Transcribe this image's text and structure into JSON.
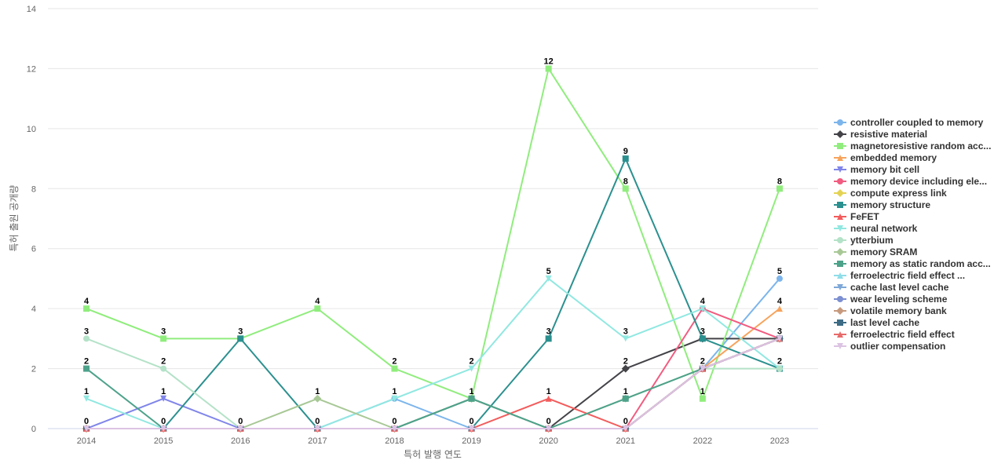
{
  "chart_data": {
    "type": "line",
    "title": "",
    "xlabel": "특허 발행 연도",
    "ylabel": "특허 출원 공개량",
    "ylim": [
      0,
      14
    ],
    "yticks": [
      0,
      2,
      4,
      6,
      8,
      10,
      12,
      14
    ],
    "grid": true,
    "legend_position": "right",
    "categories": [
      "2014",
      "2015",
      "2016",
      "2017",
      "2018",
      "2019",
      "2020",
      "2021",
      "2022",
      "2023"
    ],
    "series": [
      {
        "name": "controller coupled to memory",
        "color": "#7cb5ec",
        "marker": "circle",
        "values": [
          0,
          0,
          0,
          0,
          1,
          0,
          0,
          0,
          2,
          5
        ]
      },
      {
        "name": "resistive material",
        "color": "#434348",
        "marker": "diamond",
        "values": [
          0,
          0,
          0,
          0,
          0,
          1,
          0,
          2,
          3,
          3
        ]
      },
      {
        "name": "magnetoresistive random acc...",
        "color": "#90ed7d",
        "marker": "square",
        "values": [
          4,
          3,
          3,
          4,
          2,
          1,
          12,
          8,
          1,
          8
        ]
      },
      {
        "name": "embedded memory",
        "color": "#f7a35c",
        "marker": "triangle",
        "values": [
          0,
          0,
          0,
          0,
          0,
          0,
          0,
          0,
          2,
          4
        ]
      },
      {
        "name": "memory bit cell",
        "color": "#8085e9",
        "marker": "triangle-down",
        "values": [
          0,
          1,
          0,
          0,
          0,
          0,
          0,
          0,
          2,
          3
        ]
      },
      {
        "name": "memory device including ele...",
        "color": "#f15c80",
        "marker": "circle",
        "values": [
          0,
          0,
          0,
          0,
          0,
          0,
          0,
          0,
          4,
          3
        ]
      },
      {
        "name": "compute express link",
        "color": "#e4d354",
        "marker": "diamond",
        "values": [
          0,
          0,
          0,
          0,
          0,
          0,
          0,
          0,
          2,
          3
        ]
      },
      {
        "name": "memory structure",
        "color": "#2b908f",
        "marker": "square",
        "values": [
          0,
          0,
          3,
          0,
          0,
          0,
          3,
          9,
          3,
          2
        ]
      },
      {
        "name": "FeFET",
        "color": "#f45b5b",
        "marker": "triangle",
        "values": [
          0,
          0,
          0,
          0,
          0,
          0,
          1,
          0,
          2,
          3
        ]
      },
      {
        "name": "neural network",
        "color": "#91e8e1",
        "marker": "triangle-down",
        "values": [
          1,
          0,
          0,
          0,
          1,
          2,
          5,
          3,
          4,
          2
        ]
      },
      {
        "name": "ytterbium",
        "color": "#b4e2c8",
        "marker": "circle",
        "values": [
          3,
          2,
          0,
          0,
          0,
          0,
          0,
          0,
          2,
          2
        ]
      },
      {
        "name": "memory SRAM",
        "color": "#a8c896",
        "marker": "diamond",
        "values": [
          0,
          0,
          0,
          1,
          0,
          1,
          0,
          1,
          2,
          3
        ]
      },
      {
        "name": "memory as static random acc...",
        "color": "#4da28a",
        "marker": "square",
        "values": [
          2,
          0,
          0,
          0,
          0,
          1,
          0,
          1,
          2,
          3
        ]
      },
      {
        "name": "ferroelectric field effect ...",
        "color": "#8fdde8",
        "marker": "triangle",
        "values": [
          0,
          0,
          0,
          0,
          0,
          0,
          0,
          0,
          2,
          3
        ]
      },
      {
        "name": "cache last level cache",
        "color": "#7ea8d8",
        "marker": "triangle-down",
        "values": [
          0,
          0,
          0,
          0,
          0,
          0,
          0,
          0,
          2,
          3
        ]
      },
      {
        "name": "wear leveling scheme",
        "color": "#7b8fd1",
        "marker": "circle",
        "values": [
          0,
          0,
          0,
          0,
          0,
          0,
          0,
          0,
          2,
          3
        ]
      },
      {
        "name": "volatile memory bank",
        "color": "#c79a7e",
        "marker": "diamond",
        "values": [
          0,
          0,
          0,
          0,
          0,
          0,
          0,
          0,
          2,
          3
        ]
      },
      {
        "name": "last level cache",
        "color": "#3d6b85",
        "marker": "square",
        "values": [
          0,
          0,
          0,
          0,
          0,
          0,
          0,
          0,
          2,
          3
        ]
      },
      {
        "name": "ferroelectric field effect",
        "color": "#e86a6a",
        "marker": "triangle",
        "values": [
          0,
          0,
          0,
          0,
          0,
          0,
          0,
          0,
          2,
          3
        ]
      },
      {
        "name": "outlier compensation",
        "color": "#dcc3e3",
        "marker": "triangle-down",
        "values": [
          0,
          0,
          0,
          0,
          0,
          0,
          0,
          0,
          2,
          3
        ]
      }
    ],
    "data_labels": [
      {
        "x": "2014",
        "values": [
          4,
          3,
          2,
          1,
          0
        ]
      },
      {
        "x": "2015",
        "values": [
          3,
          2,
          1,
          0
        ]
      },
      {
        "x": "2016",
        "values": [
          3,
          0
        ]
      },
      {
        "x": "2017",
        "values": [
          4,
          1,
          0
        ]
      },
      {
        "x": "2018",
        "values": [
          2,
          1,
          0
        ]
      },
      {
        "x": "2019",
        "values": [
          2,
          1,
          0
        ]
      },
      {
        "x": "2020",
        "values": [
          12,
          5,
          3,
          1,
          0
        ]
      },
      {
        "x": "2021",
        "values": [
          9,
          8,
          3,
          2,
          1,
          0
        ]
      },
      {
        "x": "2022",
        "values": [
          4,
          3,
          2,
          1
        ]
      },
      {
        "x": "2023",
        "values": [
          8,
          5,
          4,
          3,
          2
        ]
      }
    ]
  }
}
